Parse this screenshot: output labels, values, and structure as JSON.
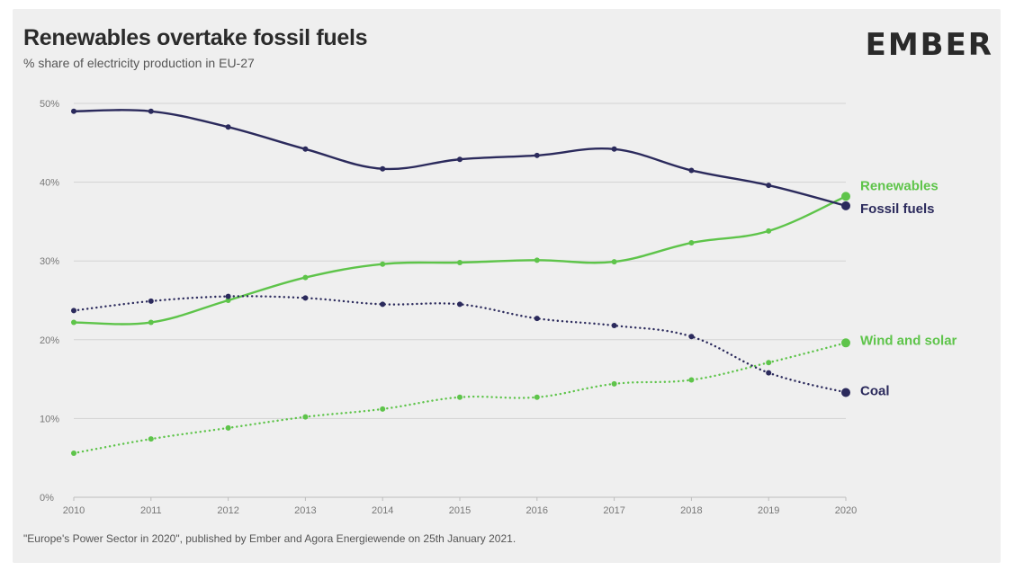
{
  "header": {
    "title": "Renewables overtake fossil fuels",
    "subtitle": "% share of electricity production in EU-27",
    "brand": "EMBER"
  },
  "footer": {
    "source": "\"Europe's Power Sector in 2020\", published by Ember and Agora Energiewende on 25th January 2021."
  },
  "chart_data": {
    "type": "line",
    "title": "Renewables overtake fossil fuels",
    "subtitle": "% share of electricity production in EU-27",
    "x": [
      2010,
      2011,
      2012,
      2013,
      2014,
      2015,
      2016,
      2017,
      2018,
      2019,
      2020
    ],
    "ylim": [
      0,
      50
    ],
    "yticks": [
      "0%",
      "10%",
      "20%",
      "30%",
      "40%",
      "50%"
    ],
    "yticks_values": [
      0,
      10,
      20,
      30,
      40,
      50
    ],
    "grid": true,
    "legend": "end-of-line labels",
    "series": [
      {
        "name": "Renewables",
        "color": "#5ec44a",
        "style": "solid",
        "values": [
          22.2,
          22.2,
          25.0,
          27.9,
          29.6,
          29.8,
          30.1,
          29.9,
          32.3,
          33.8,
          38.2
        ]
      },
      {
        "name": "Fossil fuels",
        "color": "#2b2a5c",
        "style": "solid",
        "values": [
          49.0,
          49.0,
          47.0,
          44.2,
          41.7,
          42.9,
          43.4,
          44.2,
          41.5,
          39.6,
          37.0
        ]
      },
      {
        "name": "Wind and solar",
        "color": "#5ec44a",
        "style": "dotted",
        "values": [
          5.6,
          7.4,
          8.8,
          10.2,
          11.2,
          12.7,
          12.7,
          14.4,
          14.9,
          17.1,
          19.6
        ]
      },
      {
        "name": "Coal",
        "color": "#2b2a5c",
        "style": "dotted",
        "values": [
          23.7,
          24.9,
          25.5,
          25.3,
          24.5,
          24.5,
          22.7,
          21.8,
          20.4,
          15.8,
          13.3
        ]
      }
    ]
  }
}
